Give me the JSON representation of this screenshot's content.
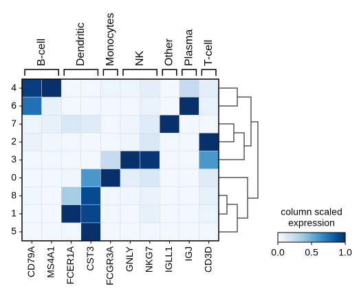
{
  "chart_data": {
    "type": "heatmap",
    "rows": [
      "4",
      "6",
      "7",
      "2",
      "3",
      "0",
      "8",
      "1",
      "5"
    ],
    "columns": [
      "CD79A",
      "MS4A1",
      "FCER1A",
      "CST3",
      "FCGR3A",
      "GNLY",
      "NKG7",
      "IGLL1",
      "IGJ",
      "CD3D"
    ],
    "groups": [
      {
        "label": "B-cell",
        "size": 2
      },
      {
        "label": "Dendritic",
        "size": 2
      },
      {
        "label": "Monocytes",
        "size": 1
      },
      {
        "label": "NK",
        "size": 2
      },
      {
        "label": "Other",
        "size": 1
      },
      {
        "label": "Plasma",
        "size": 1
      },
      {
        "label": "T-cell",
        "size": 1
      }
    ],
    "values": [
      [
        0.95,
        1.0,
        0.02,
        0.03,
        0.05,
        0.05,
        0.1,
        0.02,
        0.25,
        0.1
      ],
      [
        0.75,
        0.08,
        0.02,
        0.02,
        0.02,
        0.03,
        0.07,
        0.02,
        1.0,
        0.07
      ],
      [
        0.05,
        0.08,
        0.15,
        0.12,
        0.03,
        0.05,
        0.12,
        1.0,
        0.02,
        0.03
      ],
      [
        0.07,
        0.04,
        0.03,
        0.02,
        0.02,
        0.05,
        0.15,
        0.02,
        0.03,
        1.0
      ],
      [
        0.03,
        0.03,
        0.02,
        0.02,
        0.25,
        1.0,
        0.98,
        0.02,
        0.02,
        0.6
      ],
      [
        0.02,
        0.02,
        0.04,
        0.6,
        1.0,
        0.1,
        0.15,
        0.02,
        0.02,
        0.12
      ],
      [
        0.04,
        0.02,
        0.35,
        0.9,
        0.03,
        0.04,
        0.07,
        0.02,
        0.02,
        0.08
      ],
      [
        0.02,
        0.02,
        1.0,
        0.92,
        0.03,
        0.03,
        0.08,
        0.02,
        0.02,
        0.05
      ],
      [
        0.02,
        0.02,
        0.03,
        1.0,
        0.02,
        0.02,
        0.03,
        0.02,
        0.02,
        0.03
      ]
    ],
    "colorscale": [
      "#f7fbff",
      "#deebf7",
      "#c6dbef",
      "#9ecae1",
      "#6baed6",
      "#4292c6",
      "#2171b5",
      "#08519c",
      "#08306b"
    ],
    "colorbar_title": [
      "column scaled",
      "expression"
    ],
    "zlim": [
      0,
      1
    ],
    "zticks": [
      {
        "value": 0,
        "label": "0.0"
      },
      {
        "value": 0.5,
        "label": "0.5"
      },
      {
        "value": 1,
        "label": "1.0"
      }
    ]
  }
}
